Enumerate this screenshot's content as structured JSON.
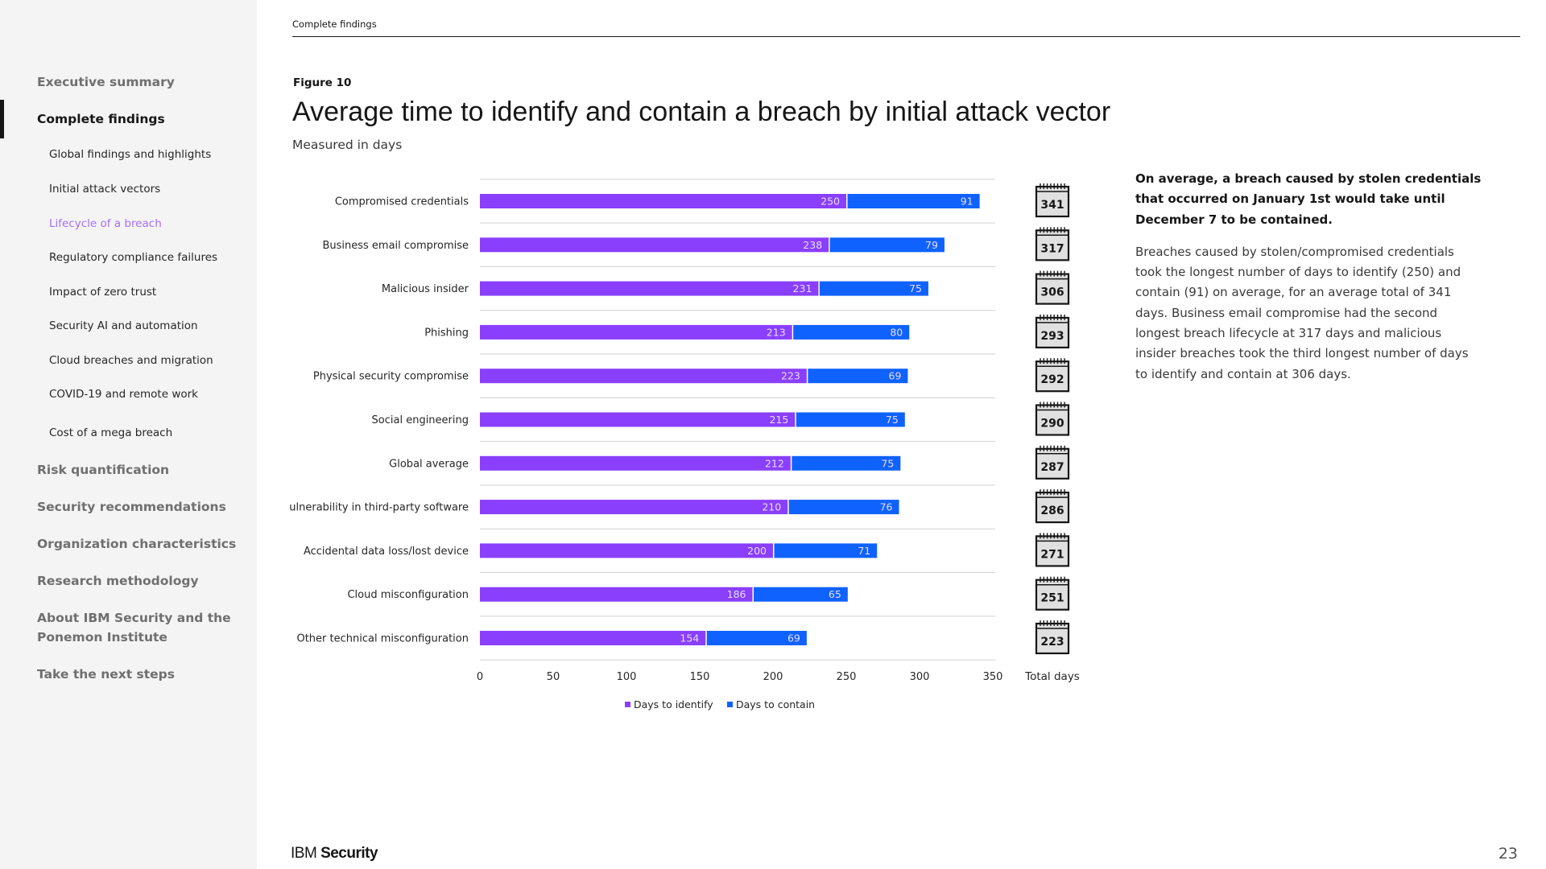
{
  "header": {
    "section": "Complete findings"
  },
  "sidebar": {
    "items": [
      {
        "label": "Executive summary"
      },
      {
        "label": "Complete findings"
      },
      {
        "label": "Risk quantification"
      },
      {
        "label": "Security recommendations"
      },
      {
        "label": "Organization characteristics"
      },
      {
        "label": "Research methodology"
      },
      {
        "label": "About IBM Security and the Ponemon Institute"
      },
      {
        "label": "Take the next steps"
      }
    ],
    "subitems": [
      {
        "label": "Global findings and highlights"
      },
      {
        "label": "Initial attack vectors"
      },
      {
        "label": "Lifecycle of a breach"
      },
      {
        "label": "Regulatory compliance failures"
      },
      {
        "label": "Impact of zero trust"
      },
      {
        "label": "Security AI and automation"
      },
      {
        "label": "Cloud breaches and migration"
      },
      {
        "label": "COVID-19 and remote work"
      },
      {
        "label": "Cost of a mega breach"
      }
    ]
  },
  "figure": {
    "label": "Figure 10",
    "title": "Average time to identify and contain a breach by initial attack vector",
    "subtitle": "Measured in days"
  },
  "chart_data": {
    "type": "bar",
    "orientation": "horizontal",
    "stacked": true,
    "title": "Average time to identify and contain a breach by initial attack vector",
    "subtitle": "Measured in days",
    "categories": [
      "Compromised credentials",
      "Business email compromise",
      "Malicious insider",
      "Phishing",
      "Physical security compromise",
      "Social engineering",
      "Global average",
      "Vulnerability in third-party software",
      "Accidental data loss/lost device",
      "Cloud misconfiguration",
      "Other technical misconfiguration"
    ],
    "series": [
      {
        "name": "Days to identify",
        "color": "#8a3ffc",
        "values": [
          250,
          238,
          231,
          213,
          223,
          215,
          212,
          210,
          200,
          186,
          154
        ]
      },
      {
        "name": "Days to contain",
        "color": "#0f62fe",
        "values": [
          91,
          79,
          75,
          80,
          69,
          75,
          75,
          76,
          71,
          65,
          69
        ]
      }
    ],
    "totals": [
      341,
      317,
      306,
      293,
      292,
      290,
      287,
      286,
      271,
      251,
      223
    ],
    "totals_label": "Total days",
    "xlim": [
      0,
      350
    ],
    "xticks": [
      0,
      50,
      100,
      150,
      200,
      250,
      300,
      350
    ],
    "legend": "bottom"
  },
  "sidetext": {
    "bold": "On average, a breach caused by stolen credentials that occurred on January 1st would take until December 7 to be contained.",
    "body": "Breaches caused by stolen/compromised credentials took the longest number of days to identify (250) and contain (91) on average, for an average total of 341 days. Business email compromise had the second longest breach lifecycle at 317 days and malicious insider breaches took the third longest number of days to identify and contain at 306 days."
  },
  "footer": {
    "brand_light": "IBM",
    "brand_bold": "Security",
    "page": "23"
  }
}
